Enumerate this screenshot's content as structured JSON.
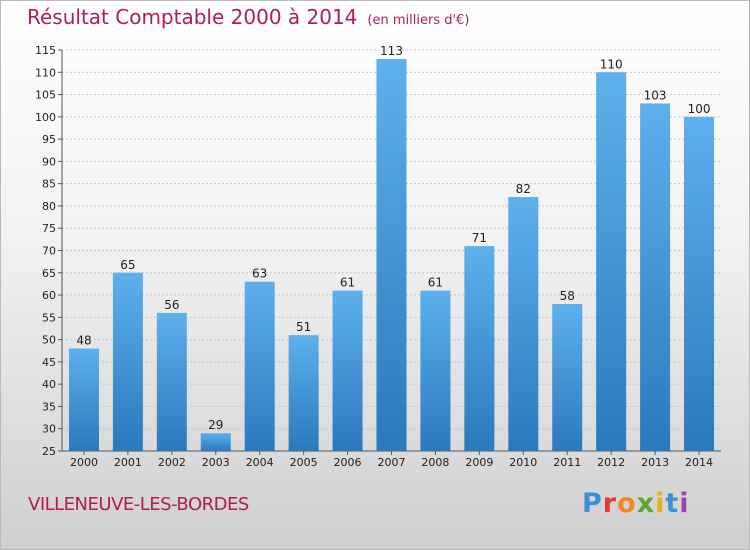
{
  "header": {
    "title": "Résultat Comptable 2000 à 2014",
    "subtitle": "(en milliers d'€)"
  },
  "footer": {
    "city": "VILLENEUVE-LES-BORDES"
  },
  "logo": {
    "letters": [
      "P",
      "r",
      "o",
      "x",
      "i",
      "t",
      "i"
    ],
    "colors": [
      "#3b8fd6",
      "#e23b2e",
      "#f08a1c",
      "#5aa832",
      "#e2b21c",
      "#3b8fd6",
      "#a040b0"
    ]
  },
  "chart_data": {
    "type": "bar",
    "title": "Résultat Comptable 2000 à 2014",
    "subtitle": "(en milliers d'€)",
    "xlabel": "",
    "ylabel": "",
    "categories": [
      "2000",
      "2001",
      "2002",
      "2003",
      "2004",
      "2005",
      "2006",
      "2007",
      "2008",
      "2009",
      "2010",
      "2011",
      "2012",
      "2013",
      "2014"
    ],
    "values": [
      48,
      65,
      56,
      29,
      63,
      51,
      61,
      113,
      61,
      71,
      82,
      58,
      110,
      103,
      100
    ],
    "ylim": [
      25,
      115
    ],
    "yticks": [
      25,
      30,
      35,
      40,
      45,
      50,
      55,
      60,
      65,
      70,
      75,
      80,
      85,
      90,
      95,
      100,
      105,
      110,
      115
    ],
    "grid": true,
    "bar_color": "#3d95dc"
  }
}
